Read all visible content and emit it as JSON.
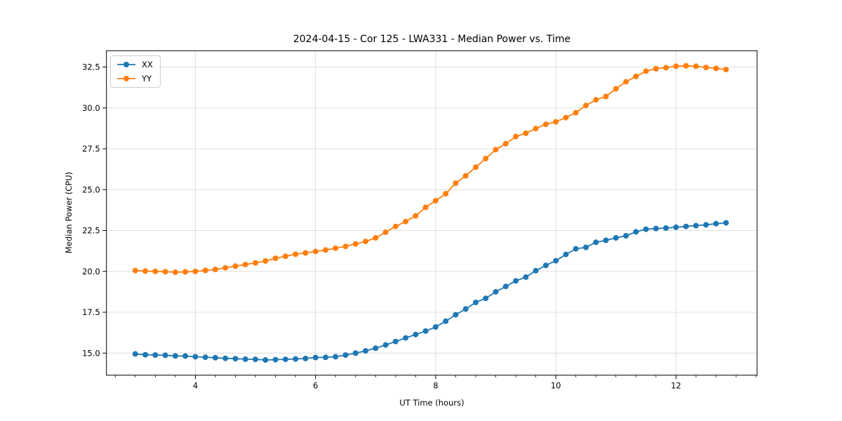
{
  "chart_data": {
    "type": "line",
    "title": "2024-04-15 - Cor 125 - LWA331 - Median Power vs. Time",
    "xlabel": "UT Time (hours)",
    "ylabel": "Median Power (CPU)",
    "xlim": [
      2.52,
      13.35
    ],
    "ylim": [
      13.65,
      33.5
    ],
    "xticks": [
      4,
      6,
      8,
      10,
      12
    ],
    "xtick_labels": [
      "4",
      "6",
      "8",
      "10",
      "12"
    ],
    "yticks": [
      15.0,
      17.5,
      20.0,
      22.5,
      25.0,
      27.5,
      30.0,
      32.5
    ],
    "ytick_labels": [
      "15.0",
      "17.5",
      "20.0",
      "22.5",
      "25.0",
      "27.5",
      "30.0",
      "32.5"
    ],
    "x_minor_step": 0.33333,
    "grid": true,
    "grid_color": "#dcdcdc",
    "legend_position": "upper-left",
    "x": [
      3.0,
      3.167,
      3.333,
      3.5,
      3.667,
      3.833,
      4.0,
      4.167,
      4.333,
      4.5,
      4.667,
      4.833,
      5.0,
      5.167,
      5.333,
      5.5,
      5.667,
      5.833,
      6.0,
      6.167,
      6.333,
      6.5,
      6.667,
      6.833,
      7.0,
      7.167,
      7.333,
      7.5,
      7.667,
      7.833,
      8.0,
      8.167,
      8.333,
      8.5,
      8.667,
      8.833,
      9.0,
      9.167,
      9.333,
      9.5,
      9.667,
      9.833,
      10.0,
      10.167,
      10.333,
      10.5,
      10.667,
      10.833,
      11.0,
      11.167,
      11.333,
      11.5,
      11.667,
      11.833,
      12.0,
      12.167,
      12.333,
      12.5,
      12.667,
      12.833
    ],
    "series": [
      {
        "name": "XX",
        "color": "#1f77b4",
        "values": [
          14.95,
          14.9,
          14.88,
          14.87,
          14.83,
          14.82,
          14.78,
          14.75,
          14.72,
          14.68,
          14.66,
          14.63,
          14.62,
          14.58,
          14.6,
          14.62,
          14.64,
          14.67,
          14.73,
          14.74,
          14.78,
          14.88,
          15.0,
          15.14,
          15.3,
          15.5,
          15.71,
          15.93,
          16.14,
          16.35,
          16.6,
          16.95,
          17.35,
          17.7,
          18.1,
          18.35,
          18.75,
          19.08,
          19.42,
          19.65,
          20.04,
          20.37,
          20.65,
          21.04,
          21.38,
          21.47,
          21.78,
          21.9,
          22.05,
          22.18,
          22.42,
          22.58,
          22.62,
          22.65,
          22.7,
          22.75,
          22.8,
          22.85,
          22.92,
          22.97
        ]
      },
      {
        "name": "YY",
        "color": "#ff7f0e",
        "values": [
          20.05,
          20.02,
          20.0,
          19.98,
          19.95,
          19.97,
          20.0,
          20.06,
          20.12,
          20.22,
          20.32,
          20.42,
          20.52,
          20.64,
          20.8,
          20.92,
          21.05,
          21.13,
          21.22,
          21.31,
          21.42,
          21.53,
          21.68,
          21.83,
          22.05,
          22.4,
          22.75,
          23.05,
          23.4,
          23.92,
          24.32,
          24.75,
          25.4,
          25.85,
          26.38,
          26.9,
          27.45,
          27.81,
          28.25,
          28.45,
          28.74,
          29.0,
          29.15,
          29.41,
          29.71,
          30.15,
          30.5,
          30.7,
          31.17,
          31.6,
          31.93,
          32.25,
          32.4,
          32.46,
          32.55,
          32.58,
          32.55,
          32.48,
          32.42,
          32.35
        ]
      }
    ]
  }
}
